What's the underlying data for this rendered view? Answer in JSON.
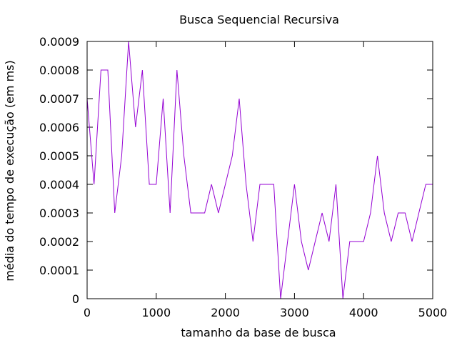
{
  "chart_data": {
    "type": "line",
    "title": "Busca Sequencial Recursiva",
    "xlabel": "tamanho da base de busca",
    "ylabel": "média do tempo de execução (em ms)",
    "xlim": [
      0,
      5000
    ],
    "ylim": [
      0,
      0.0009
    ],
    "x_ticks": [
      "0",
      "1000",
      "2000",
      "3000",
      "4000",
      "5000"
    ],
    "y_ticks": [
      "0",
      "0.0001",
      "0.0002",
      "0.0003",
      "0.0004",
      "0.0005",
      "0.0006",
      "0.0007",
      "0.0008",
      "0.0009"
    ],
    "grid": false,
    "legend": "none",
    "line_color": "#9400d3",
    "series": [
      {
        "x": [
          0,
          100,
          200,
          300,
          400,
          500,
          600,
          700,
          800,
          900,
          1000,
          1100,
          1200,
          1300,
          1400,
          1500,
          1600,
          1700,
          1800,
          1900,
          2000,
          2100,
          2200,
          2300,
          2400,
          2500,
          2600,
          2700,
          2800,
          2900,
          3000,
          3100,
          3200,
          3300,
          3400,
          3500,
          3600,
          3700,
          3800,
          3900,
          4000,
          4100,
          4200,
          4300,
          4400,
          4500,
          4600,
          4700,
          4800,
          4900,
          5000
        ],
        "values": [
          0.0007,
          0.0004,
          0.0008,
          0.0008,
          0.0003,
          0.0005,
          0.0009,
          0.0006,
          0.0008,
          0.0004,
          0.0004,
          0.0007,
          0.0003,
          0.0008,
          0.0005,
          0.0003,
          0.0003,
          0.0003,
          0.0004,
          0.0003,
          0.0004,
          0.0005,
          0.0007,
          0.0004,
          0.0002,
          0.0004,
          0.0004,
          0.0004,
          0.0,
          0.0002,
          0.0004,
          0.0002,
          0.0001,
          0.0002,
          0.0003,
          0.0002,
          0.0004,
          0.0,
          0.0002,
          0.0002,
          0.0002,
          0.0003,
          0.0005,
          0.0003,
          0.0002,
          0.0003,
          0.0003,
          0.0002,
          0.0003,
          0.0004,
          0.0004
        ]
      }
    ]
  }
}
